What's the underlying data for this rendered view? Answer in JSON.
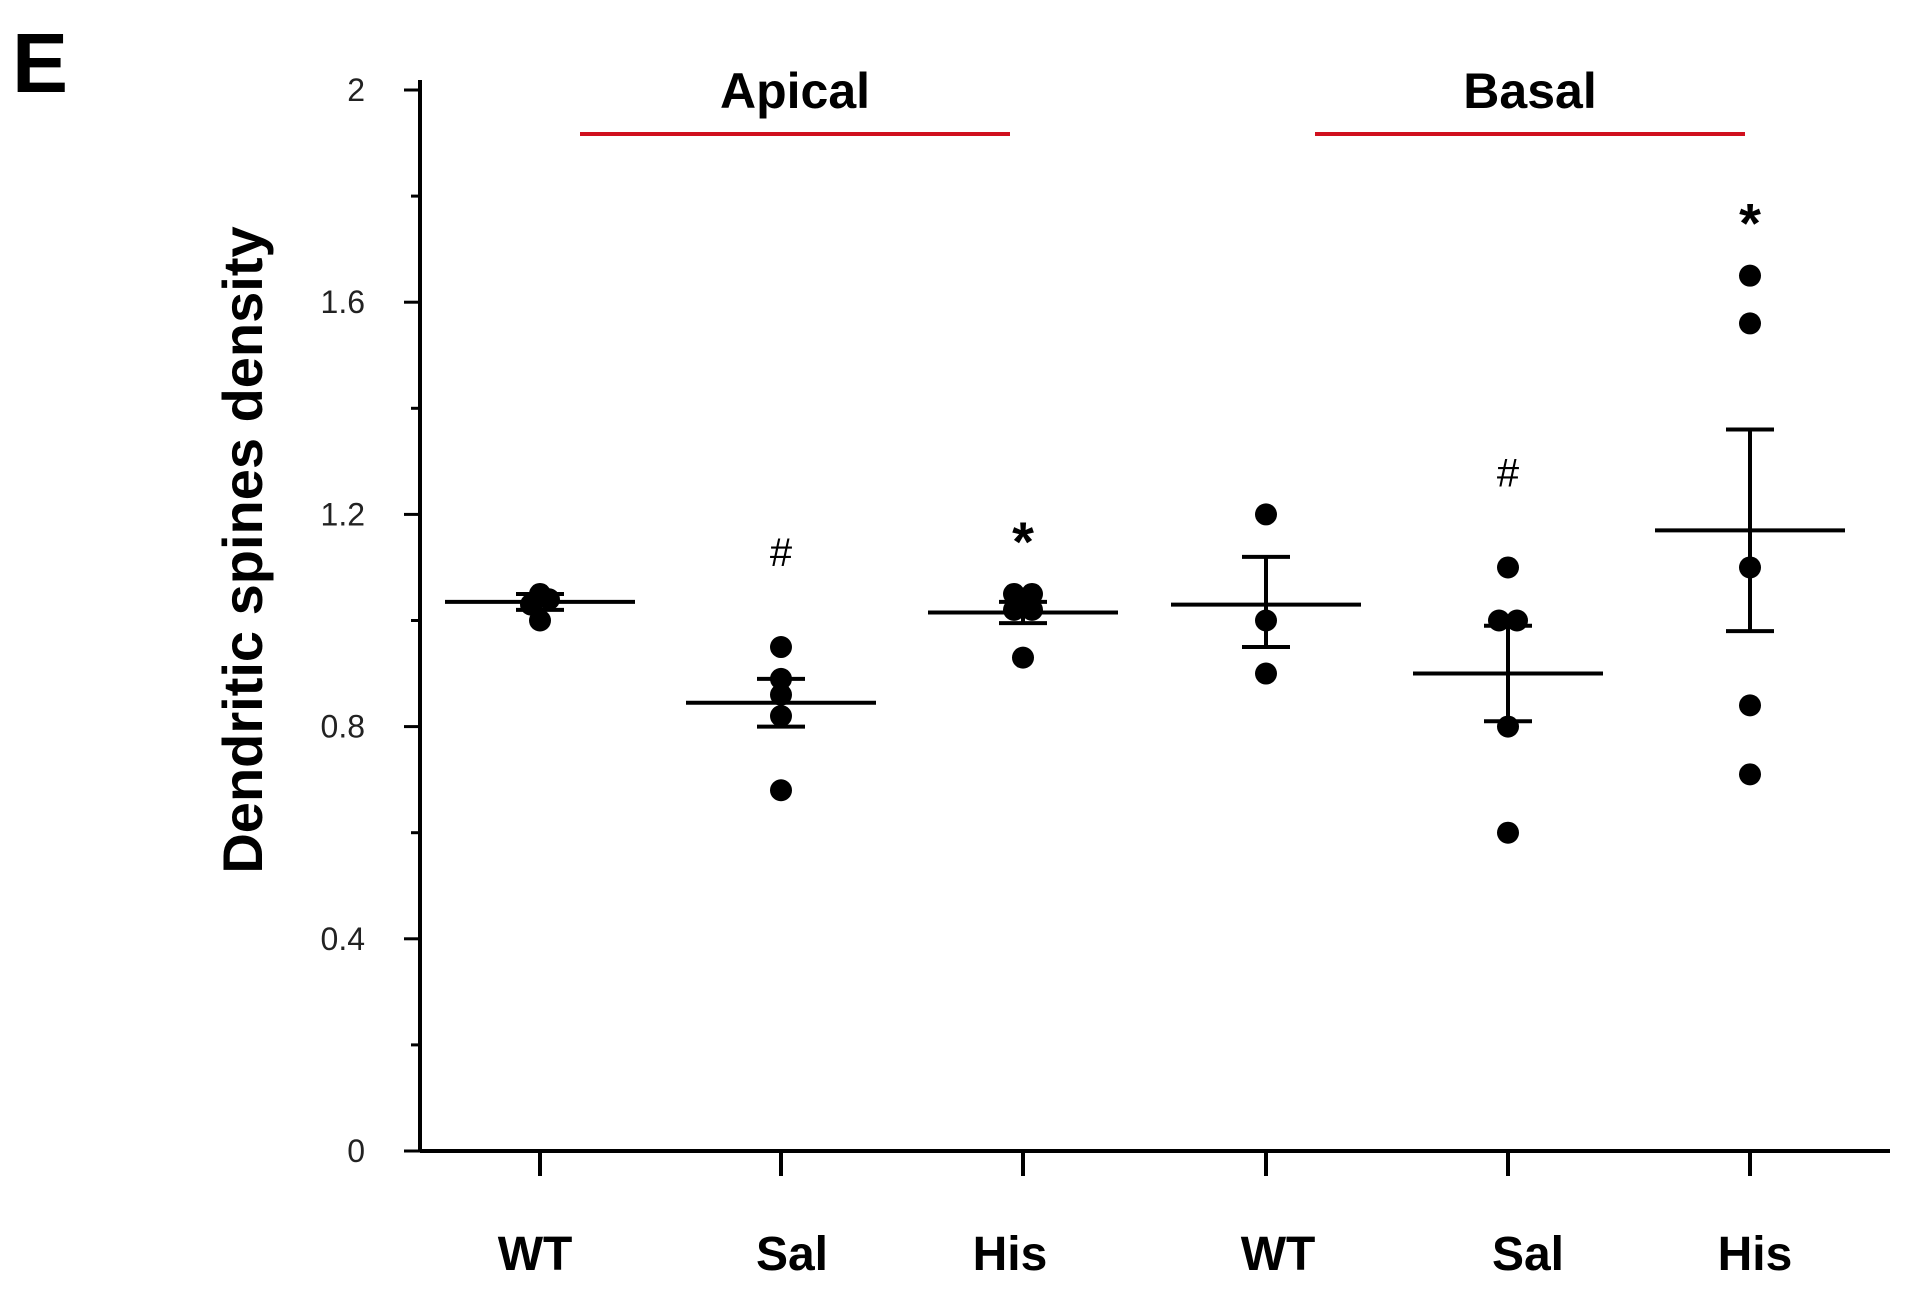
{
  "panel_label": "E",
  "colors": {
    "axis": "#000000",
    "point": "#000000",
    "group_line": "#d0101e"
  },
  "chart_data": {
    "type": "scatter",
    "subtype": "dot-plot with mean and SEM",
    "ylabel": "Dendritic spines density",
    "xlabel": "",
    "ylim": [
      0,
      2
    ],
    "yticks": [
      {
        "value": 0,
        "label": "0"
      },
      {
        "value": 0.4,
        "label": "0.4"
      },
      {
        "value": 0.8,
        "label": "0.8"
      },
      {
        "value": 1.2,
        "label": "1.2"
      },
      {
        "value": 1.6,
        "label": "1.6"
      },
      {
        "value": 2,
        "label": "2"
      }
    ],
    "yminor": [
      0.2,
      0.6,
      1.0,
      1.4,
      1.8
    ],
    "groups": [
      {
        "name": "Apical",
        "categories": [
          0,
          1,
          2
        ]
      },
      {
        "name": "Basal",
        "categories": [
          3,
          4,
          5
        ]
      }
    ],
    "categories": [
      {
        "label": "WT",
        "points": [
          1.0,
          1.03,
          1.05,
          1.04
        ],
        "mean": 1.035,
        "sem_low": 1.02,
        "sem_high": 1.05,
        "annotation": ""
      },
      {
        "label": "Sal",
        "points": [
          0.95,
          0.89,
          0.86,
          0.82,
          0.68
        ],
        "mean": 0.845,
        "sem_low": 0.8,
        "sem_high": 0.89,
        "annotation": "#"
      },
      {
        "label": "His",
        "points": [
          1.05,
          1.05,
          1.02,
          1.02,
          0.93
        ],
        "mean": 1.015,
        "sem_low": 0.995,
        "sem_high": 1.035,
        "annotation": "*"
      },
      {
        "label": "WT",
        "points": [
          1.2,
          1.0,
          0.9
        ],
        "mean": 1.03,
        "sem_low": 0.95,
        "sem_high": 1.12,
        "annotation": ""
      },
      {
        "label": "Sal",
        "points": [
          1.1,
          1.0,
          1.0,
          0.8,
          0.6
        ],
        "mean": 0.9,
        "sem_low": 0.81,
        "sem_high": 0.99,
        "annotation": "#"
      },
      {
        "label": "His",
        "points": [
          1.65,
          1.56,
          1.1,
          0.84,
          0.71
        ],
        "mean": 1.17,
        "sem_low": 0.98,
        "sem_high": 1.36,
        "annotation": "*"
      }
    ]
  }
}
